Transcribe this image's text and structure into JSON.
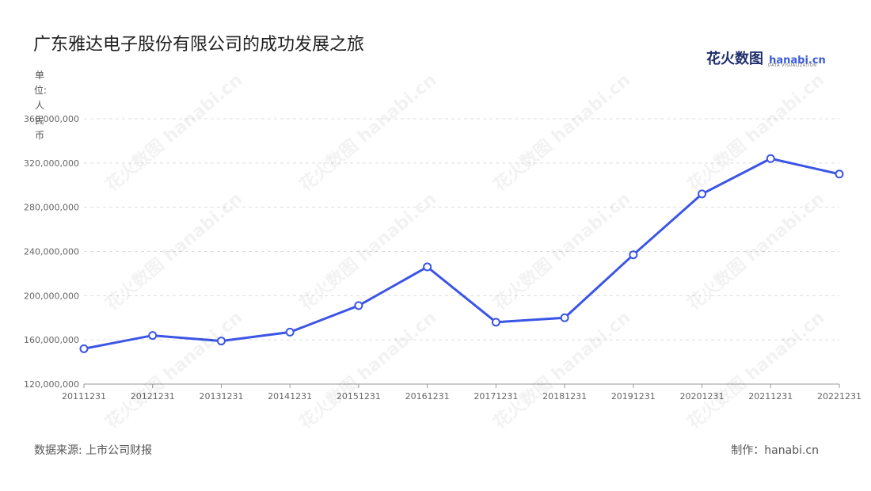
{
  "title": "广东雅达电子股份有限公司的成功发展之旅",
  "brand": {
    "name_cn": "花火数图",
    "name_en": "hanabi.cn",
    "tagline": "DATA VISUALIZATION"
  },
  "unit_label": "单位:人民币",
  "source": "数据来源: 上市公司财报",
  "maker": "制作：hanabi.cn",
  "watermark": "花火数图 hanabi.cn",
  "colors": {
    "line": "#3b55e6",
    "marker_fill": "#ffffff",
    "grid": "#dddddd"
  },
  "chart_data": {
    "type": "line",
    "categories": [
      "20111231",
      "20121231",
      "20131231",
      "20141231",
      "20151231",
      "20161231",
      "20171231",
      "20181231",
      "20191231",
      "20201231",
      "20211231",
      "20221231"
    ],
    "series": [
      {
        "values": [
          152000000,
          164000000,
          159000000,
          167000000,
          191000000,
          226000000,
          176000000,
          180000000,
          237000000,
          292000000,
          324000000,
          310000000
        ]
      }
    ],
    "ylim": [
      120000000,
      360000000
    ],
    "yticks": [
      "120,000,000",
      "160,000,000",
      "200,000,000",
      "240,000,000",
      "280,000,000",
      "320,000,000",
      "360,000,000"
    ],
    "ytick_values": [
      120000000,
      160000000,
      200000000,
      240000000,
      280000000,
      320000000,
      360000000
    ],
    "grid": true
  }
}
